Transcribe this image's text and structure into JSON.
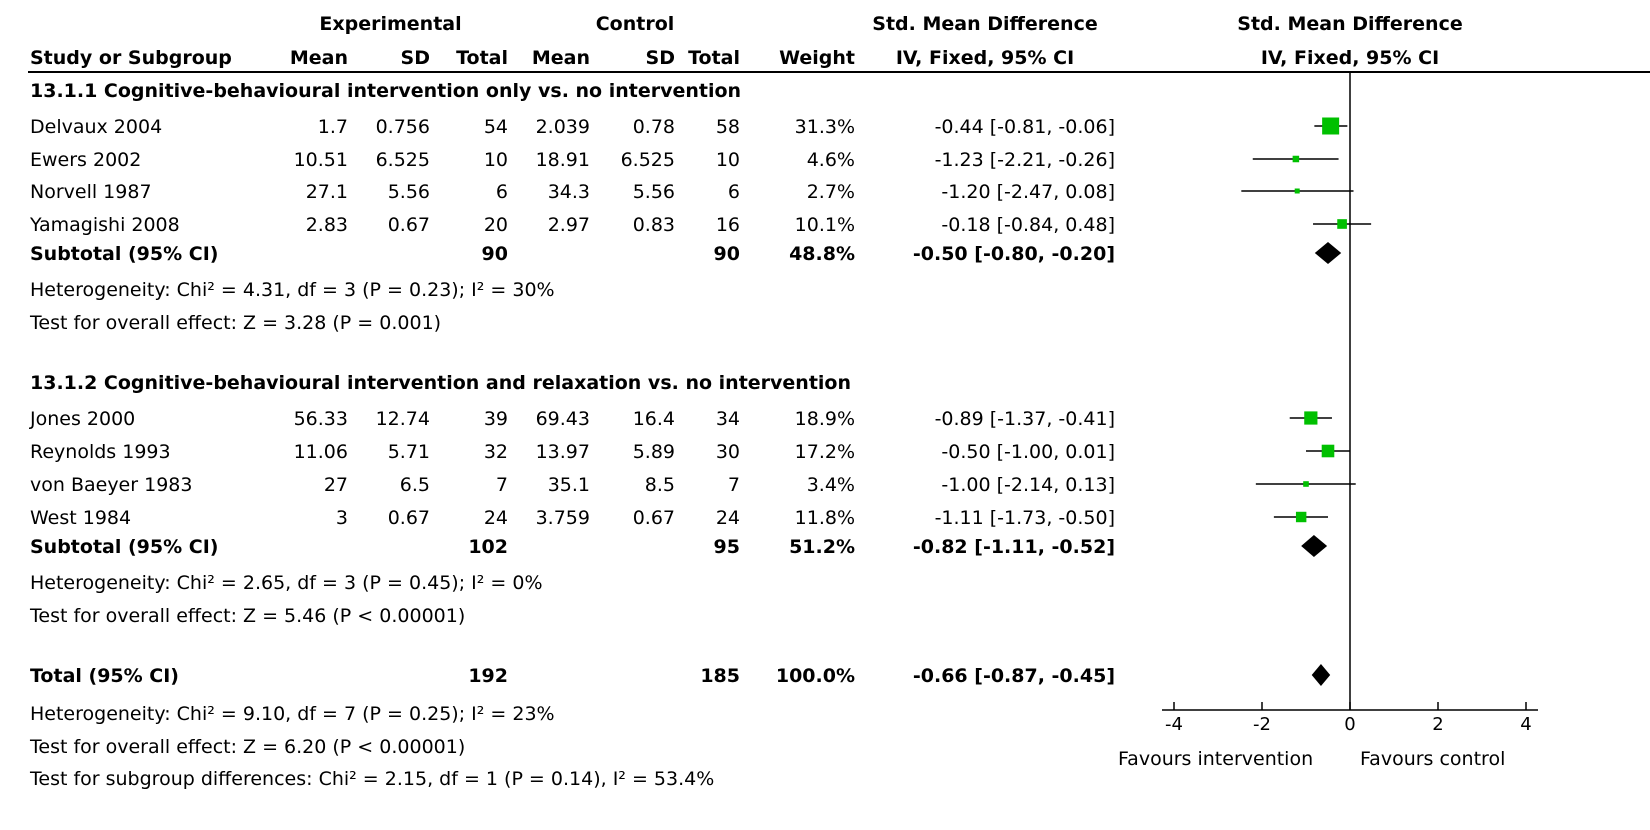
{
  "header": {
    "group_experimental": "Experimental",
    "group_control": "Control",
    "smd_title_table": "Std. Mean Difference",
    "smd_title_plot": "Std. Mean Difference",
    "columns": {
      "study": "Study or Subgroup",
      "exp_mean": "Mean",
      "exp_sd": "SD",
      "exp_total": "Total",
      "ctl_mean": "Mean",
      "ctl_sd": "SD",
      "ctl_total": "Total",
      "weight": "Weight",
      "ci": "IV, Fixed, 95% CI",
      "plot_ci": "IV, Fixed, 95% CI"
    }
  },
  "subgroups": [
    {
      "title": "13.1.1 Cognitive-behavioural intervention only vs. no intervention",
      "studies": [
        {
          "name": "Delvaux 2004",
          "exp_mean": "1.7",
          "exp_sd": "0.756",
          "exp_total": "54",
          "ctl_mean": "2.039",
          "ctl_sd": "0.78",
          "ctl_total": "58",
          "weight": "31.3%",
          "ci_text": "-0.44 [-0.81, -0.06]"
        },
        {
          "name": "Ewers 2002",
          "exp_mean": "10.51",
          "exp_sd": "6.525",
          "exp_total": "10",
          "ctl_mean": "18.91",
          "ctl_sd": "6.525",
          "ctl_total": "10",
          "weight": "4.6%",
          "ci_text": "-1.23 [-2.21, -0.26]"
        },
        {
          "name": "Norvell 1987",
          "exp_mean": "27.1",
          "exp_sd": "5.56",
          "exp_total": "6",
          "ctl_mean": "34.3",
          "ctl_sd": "5.56",
          "ctl_total": "6",
          "weight": "2.7%",
          "ci_text": "-1.20 [-2.47, 0.08]"
        },
        {
          "name": "Yamagishi 2008",
          "exp_mean": "2.83",
          "exp_sd": "0.67",
          "exp_total": "20",
          "ctl_mean": "2.97",
          "ctl_sd": "0.83",
          "ctl_total": "16",
          "weight": "10.1%",
          "ci_text": "-0.18 [-0.84, 0.48]"
        }
      ],
      "subtotal": {
        "label": "Subtotal (95% CI)",
        "exp_total": "90",
        "ctl_total": "90",
        "weight": "48.8%",
        "ci_text": "-0.50 [-0.80, -0.20]"
      },
      "heterogeneity": "Heterogeneity: Chi² = 4.31, df = 3 (P = 0.23); I² = 30%",
      "overall": "Test for overall effect: Z = 3.28 (P = 0.001)"
    },
    {
      "title": "13.1.2 Cognitive-behavioural intervention and relaxation vs. no intervention",
      "studies": [
        {
          "name": "Jones 2000",
          "exp_mean": "56.33",
          "exp_sd": "12.74",
          "exp_total": "39",
          "ctl_mean": "69.43",
          "ctl_sd": "16.4",
          "ctl_total": "34",
          "weight": "18.9%",
          "ci_text": "-0.89 [-1.37, -0.41]"
        },
        {
          "name": "Reynolds 1993",
          "exp_mean": "11.06",
          "exp_sd": "5.71",
          "exp_total": "32",
          "ctl_mean": "13.97",
          "ctl_sd": "5.89",
          "ctl_total": "30",
          "weight": "17.2%",
          "ci_text": "-0.50 [-1.00, 0.01]"
        },
        {
          "name": "von Baeyer 1983",
          "exp_mean": "27",
          "exp_sd": "6.5",
          "exp_total": "7",
          "ctl_mean": "35.1",
          "ctl_sd": "8.5",
          "ctl_total": "7",
          "weight": "3.4%",
          "ci_text": "-1.00 [-2.14, 0.13]"
        },
        {
          "name": "West 1984",
          "exp_mean": "3",
          "exp_sd": "0.67",
          "exp_total": "24",
          "ctl_mean": "3.759",
          "ctl_sd": "0.67",
          "ctl_total": "24",
          "weight": "11.8%",
          "ci_text": "-1.11 [-1.73, -0.50]"
        }
      ],
      "subtotal": {
        "label": "Subtotal (95% CI)",
        "exp_total": "102",
        "ctl_total": "95",
        "weight": "51.2%",
        "ci_text": "-0.82 [-1.11, -0.52]"
      },
      "heterogeneity": "Heterogeneity: Chi² = 2.65, df = 3 (P = 0.45); I² = 0%",
      "overall": "Test for overall effect: Z = 5.46 (P < 0.00001)"
    }
  ],
  "total": {
    "label": "Total (95% CI)",
    "exp_total": "192",
    "ctl_total": "185",
    "weight": "100.0%",
    "ci_text": "-0.66 [-0.87, -0.45]",
    "heterogeneity": "Heterogeneity: Chi² = 9.10, df = 7 (P = 0.25); I² = 23%",
    "overall": "Test for overall effect: Z = 6.20 (P < 0.00001)",
    "subgroup_diff": "Test for subgroup differences: Chi² = 2.15, df = 1 (P = 0.14), I² = 53.4%"
  },
  "axis": {
    "favours_left": "Favours intervention",
    "favours_right": "Favours control"
  },
  "colors": {
    "marker": "#00c000",
    "line": "#000000",
    "diamond": "#000000"
  },
  "chart_data": {
    "type": "scatter",
    "subtype": "forest plot",
    "xlim": [
      -4,
      4
    ],
    "ticks": [
      -4,
      -2,
      0,
      2,
      4
    ],
    "null_line": 0,
    "studies": [
      {
        "name": "Delvaux 2004",
        "est": -0.44,
        "lo": -0.81,
        "hi": -0.06,
        "weight": 31.3
      },
      {
        "name": "Ewers 2002",
        "est": -1.23,
        "lo": -2.21,
        "hi": -0.26,
        "weight": 4.6
      },
      {
        "name": "Norvell 1987",
        "est": -1.2,
        "lo": -2.47,
        "hi": 0.08,
        "weight": 2.7
      },
      {
        "name": "Yamagishi 2008",
        "est": -0.18,
        "lo": -0.84,
        "hi": 0.48,
        "weight": 10.1
      },
      {
        "name": "Jones 2000",
        "est": -0.89,
        "lo": -1.37,
        "hi": -0.41,
        "weight": 18.9
      },
      {
        "name": "Reynolds 1993",
        "est": -0.5,
        "lo": -1.0,
        "hi": 0.01,
        "weight": 17.2
      },
      {
        "name": "von Baeyer 1983",
        "est": -1.0,
        "lo": -2.14,
        "hi": 0.13,
        "weight": 3.4
      },
      {
        "name": "West 1984",
        "est": -1.11,
        "lo": -1.73,
        "hi": -0.5,
        "weight": 11.8
      }
    ],
    "pooled": [
      {
        "name": "Subtotal 13.1.1",
        "est": -0.5,
        "lo": -0.8,
        "hi": -0.2
      },
      {
        "name": "Subtotal 13.1.2",
        "est": -0.82,
        "lo": -1.11,
        "hi": -0.52
      },
      {
        "name": "Total",
        "est": -0.66,
        "lo": -0.87,
        "hi": -0.45
      }
    ]
  }
}
